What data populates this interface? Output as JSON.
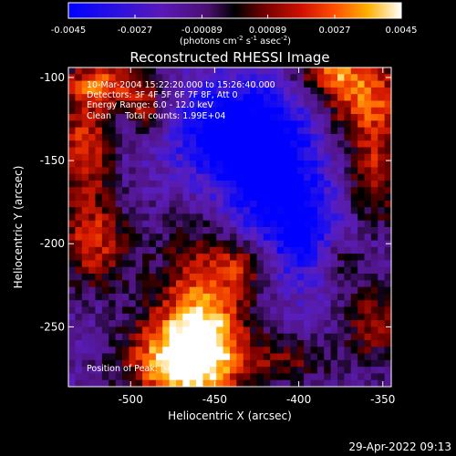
{
  "chart_data": [
    {
      "type": "colorbar",
      "range": [
        -0.0045,
        0.0045
      ],
      "tick_labels": [
        "-0.0045",
        "-0.0027",
        "-0.00089",
        "0.00089",
        "0.0027",
        "0.0045"
      ],
      "unit_label": {
        "prefix": "(photons cm",
        "exp1": "-2",
        "mid1": " s",
        "exp2": "-1",
        "mid2": " asec",
        "exp3": "-2",
        "suffix": ")"
      }
    },
    {
      "type": "heatmap",
      "title": "Reconstructed RHESSI Image",
      "xlabel": "Heliocentric X (arcsec)",
      "ylabel": "Heliocentric Y (arcsec)",
      "xlim": [
        -537,
        -345
      ],
      "ylim": [
        -286,
        -94
      ],
      "xticks": [
        -500,
        -450,
        -400,
        -350
      ],
      "yticks": [
        -100,
        -150,
        -200,
        -250
      ],
      "xtick_labels": [
        "-500",
        "-450",
        "-400",
        "-350"
      ],
      "ytick_labels": [
        "-100",
        "-150",
        "-200",
        "-250"
      ],
      "annotations": [
        "10-Mar-2004 15:22:20.000 to 15:26:40.000",
        "Detectors: 3F 4F 5F 6F 7F 8F, Att 0",
        "Energy Range: 6.0 - 12.0 keV",
        "Clean     Total counts: 1.99E+04"
      ],
      "peak_label": "Position of Peak: [-477,-282]",
      "peak": [
        -477,
        -282
      ]
    }
  ],
  "footer": {
    "timestamp": "29-Apr-2022 09:13"
  }
}
